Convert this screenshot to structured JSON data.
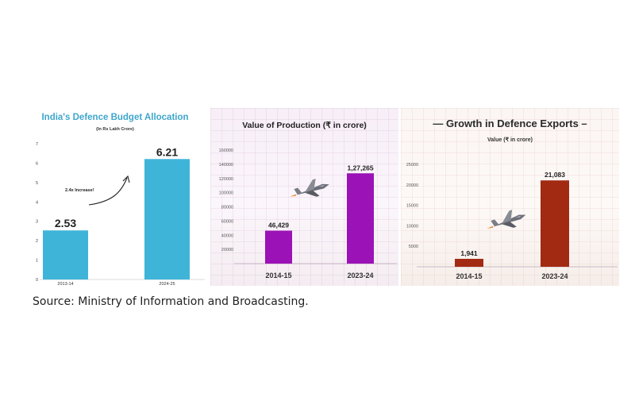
{
  "source_text": "Source: Ministry of Information and Broadcasting.",
  "colors": {
    "budget_bar": "#3fb4d9",
    "production_bar": "#9b12b6",
    "exports_bar": "#a32a12"
  },
  "chart_data": [
    {
      "type": "bar",
      "title": "India's Defence Budget Allocation",
      "subtitle": "(In Rs Lakh Crore)",
      "categories": [
        "2013-14",
        "2024-25"
      ],
      "values": [
        2.53,
        6.21
      ],
      "value_labels": [
        "2.53",
        "6.21"
      ],
      "ylim": [
        0,
        7
      ],
      "yticks": [
        0,
        1,
        2,
        3,
        4,
        5,
        6,
        7
      ],
      "annotation": "2.4x Increase!",
      "xlabel": "",
      "ylabel": ""
    },
    {
      "type": "bar",
      "title": "Value of Production (₹ in crore)",
      "categories": [
        "2014-15",
        "2023-24"
      ],
      "values": [
        46429,
        127265
      ],
      "value_labels": [
        "46,429",
        "1,27,265"
      ],
      "ylim": [
        0,
        160000
      ],
      "yticks": [
        20000,
        40000,
        60000,
        80000,
        100000,
        120000,
        140000,
        160000
      ],
      "xlabel": "",
      "ylabel": ""
    },
    {
      "type": "bar",
      "title": "— Growth in Defence Exports –",
      "subtitle": "Value (₹ in crore)",
      "categories": [
        "2014-15",
        "2023-24"
      ],
      "values": [
        1941,
        21083
      ],
      "value_labels": [
        "1,941",
        "21,083"
      ],
      "ylim": [
        0,
        25000
      ],
      "yticks": [
        5000,
        10000,
        15000,
        20000,
        25000
      ],
      "xlabel": "",
      "ylabel": ""
    }
  ]
}
